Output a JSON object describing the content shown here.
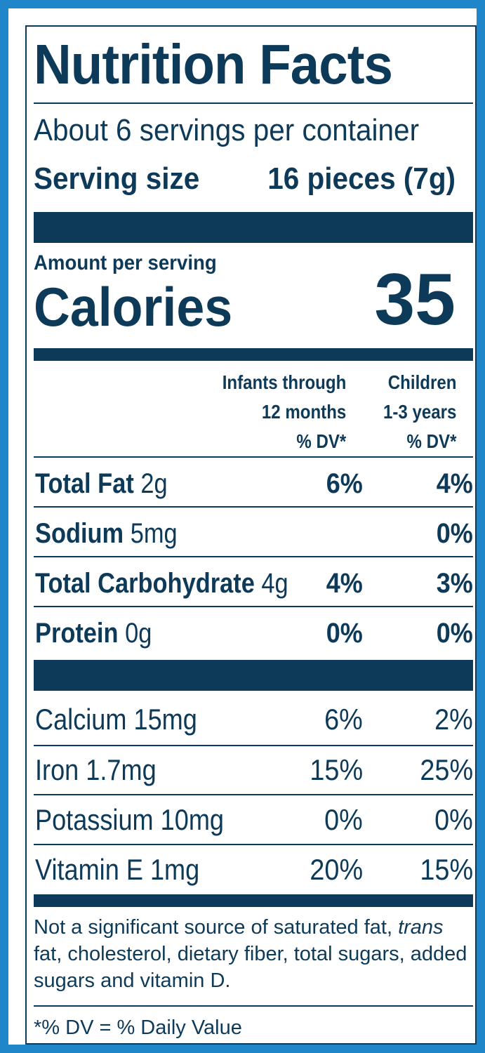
{
  "panel": {
    "title": "Nutrition Facts",
    "servings_per_container": "About 6 servings per container",
    "serving_size_label": "Serving size",
    "serving_size_value": "16 pieces (7g)",
    "amount_per_serving": "Amount per serving",
    "calories_label": "Calories",
    "calories_value": "35"
  },
  "columns": {
    "infants": {
      "line1": "Infants through",
      "line2": "12 months",
      "line3": "% DV*"
    },
    "children": {
      "line1": "Children",
      "line2": "1-3 years",
      "line3": "% DV*"
    }
  },
  "nutrients": [
    {
      "name": "Total Fat",
      "amount": "2g",
      "infants_dv": "6%",
      "children_dv": "4%"
    },
    {
      "name": "Sodium",
      "amount": "5mg",
      "infants_dv": "",
      "children_dv": "0%"
    },
    {
      "name": "Total Carbohydrate",
      "amount": "4g",
      "infants_dv": "4%",
      "children_dv": "3%"
    },
    {
      "name": "Protein",
      "amount": "0g",
      "infants_dv": "0%",
      "children_dv": "0%"
    }
  ],
  "vitamins": [
    {
      "label": "Calcium 15mg",
      "infants_dv": "6%",
      "children_dv": "2%"
    },
    {
      "label": "Iron 1.7mg",
      "infants_dv": "15%",
      "children_dv": "25%"
    },
    {
      "label": "Potassium 10mg",
      "infants_dv": "0%",
      "children_dv": "0%"
    },
    {
      "label": "Vitamin E 1mg",
      "infants_dv": "20%",
      "children_dv": "15%"
    }
  ],
  "footnote": {
    "part1": "Not a significant source of saturated fat, ",
    "italic": "trans",
    "part2": " fat, cholesterol, dietary fiber, total sugars, added sugars and vitamin D."
  },
  "dv_note": "*% DV = % Daily Value",
  "colors": {
    "frame": "#1f87c9",
    "ink": "#0d3a58",
    "background": "#ffffff"
  }
}
